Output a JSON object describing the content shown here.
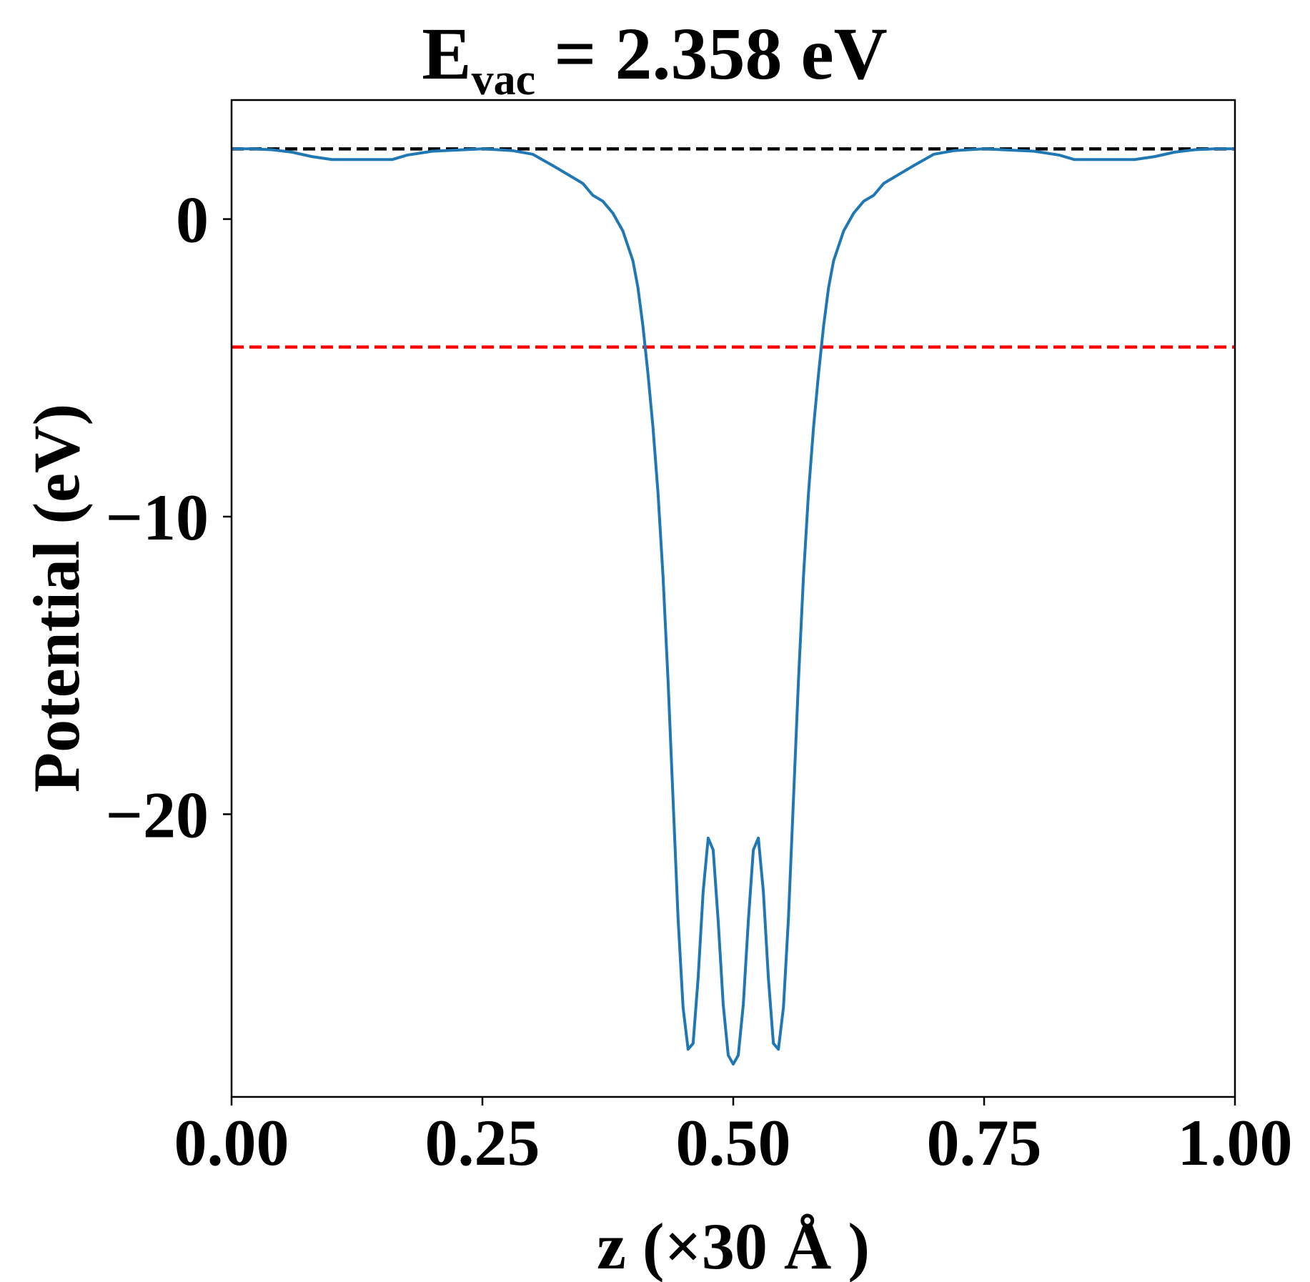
{
  "chart_data": {
    "type": "line",
    "title": {
      "main": "E",
      "subscript": "vac",
      "rest": " = 2.358 eV"
    },
    "xlabel": "z (×30 Å )",
    "ylabel": "Potential (eV)",
    "xlim": [
      0.0,
      1.0
    ],
    "ylim": [
      -29.5,
      4.0
    ],
    "x_ticks": [
      {
        "value": 0.0,
        "label": "0.00"
      },
      {
        "value": 0.25,
        "label": "0.25"
      },
      {
        "value": 0.5,
        "label": "0.50"
      },
      {
        "value": 0.75,
        "label": "0.75"
      },
      {
        "value": 1.0,
        "label": "1.00"
      }
    ],
    "y_ticks": [
      {
        "value": 0,
        "label": "0"
      },
      {
        "value": -10,
        "label": "−10"
      },
      {
        "value": -20,
        "label": "−20"
      }
    ],
    "grid": false,
    "reference_lines": [
      {
        "y": 2.358,
        "color": "#000000",
        "style": "dashed"
      },
      {
        "y": -4.3,
        "color": "#ff0000",
        "style": "dashed"
      }
    ],
    "series": [
      {
        "color": "#1f77b4",
        "points": [
          [
            0.0,
            2.36
          ],
          [
            0.02,
            2.36
          ],
          [
            0.04,
            2.33
          ],
          [
            0.06,
            2.25
          ],
          [
            0.08,
            2.1
          ],
          [
            0.1,
            2.0
          ],
          [
            0.13,
            2.0
          ],
          [
            0.16,
            2.0
          ],
          [
            0.175,
            2.15
          ],
          [
            0.2,
            2.28
          ],
          [
            0.25,
            2.36
          ],
          [
            0.28,
            2.3
          ],
          [
            0.3,
            2.18
          ],
          [
            0.32,
            1.8
          ],
          [
            0.34,
            1.4
          ],
          [
            0.35,
            1.2
          ],
          [
            0.36,
            0.8
          ],
          [
            0.37,
            0.6
          ],
          [
            0.38,
            0.2
          ],
          [
            0.39,
            -0.4
          ],
          [
            0.4,
            -1.4
          ],
          [
            0.405,
            -2.3
          ],
          [
            0.41,
            -3.6
          ],
          [
            0.415,
            -5.2
          ],
          [
            0.42,
            -7.0
          ],
          [
            0.425,
            -9.2
          ],
          [
            0.43,
            -12.0
          ],
          [
            0.435,
            -15.5
          ],
          [
            0.44,
            -19.5
          ],
          [
            0.445,
            -23.5
          ],
          [
            0.45,
            -26.5
          ],
          [
            0.455,
            -27.9
          ],
          [
            0.46,
            -27.7
          ],
          [
            0.465,
            -25.5
          ],
          [
            0.47,
            -22.6
          ],
          [
            0.475,
            -20.8
          ],
          [
            0.48,
            -21.2
          ],
          [
            0.485,
            -23.6
          ],
          [
            0.49,
            -26.4
          ],
          [
            0.495,
            -28.1
          ],
          [
            0.5,
            -28.4
          ],
          [
            0.505,
            -28.1
          ],
          [
            0.51,
            -26.4
          ],
          [
            0.515,
            -23.6
          ],
          [
            0.52,
            -21.2
          ],
          [
            0.525,
            -20.8
          ],
          [
            0.53,
            -22.6
          ],
          [
            0.535,
            -25.5
          ],
          [
            0.54,
            -27.7
          ],
          [
            0.545,
            -27.9
          ],
          [
            0.55,
            -26.5
          ],
          [
            0.555,
            -23.5
          ],
          [
            0.56,
            -19.5
          ],
          [
            0.565,
            -15.5
          ],
          [
            0.57,
            -12.0
          ],
          [
            0.575,
            -9.2
          ],
          [
            0.58,
            -7.0
          ],
          [
            0.585,
            -5.2
          ],
          [
            0.59,
            -3.6
          ],
          [
            0.595,
            -2.3
          ],
          [
            0.6,
            -1.4
          ],
          [
            0.61,
            -0.4
          ],
          [
            0.62,
            0.2
          ],
          [
            0.63,
            0.6
          ],
          [
            0.64,
            0.8
          ],
          [
            0.65,
            1.2
          ],
          [
            0.66,
            1.4
          ],
          [
            0.68,
            1.8
          ],
          [
            0.7,
            2.18
          ],
          [
            0.72,
            2.3
          ],
          [
            0.75,
            2.36
          ],
          [
            0.8,
            2.28
          ],
          [
            0.825,
            2.15
          ],
          [
            0.84,
            2.0
          ],
          [
            0.87,
            2.0
          ],
          [
            0.9,
            2.0
          ],
          [
            0.92,
            2.1
          ],
          [
            0.94,
            2.25
          ],
          [
            0.96,
            2.33
          ],
          [
            0.98,
            2.36
          ],
          [
            1.0,
            2.36
          ]
        ]
      }
    ]
  }
}
